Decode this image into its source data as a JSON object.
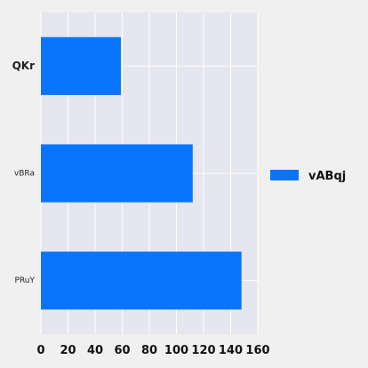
{
  "chart_data": {
    "type": "bar",
    "orientation": "horizontal",
    "title": "",
    "xlabel": "",
    "ylabel": "",
    "categories": [
      "QKr",
      "vBRa",
      "PRuY"
    ],
    "series": [
      {
        "name": "vABqj",
        "values": [
          59,
          112,
          148
        ],
        "color": "#0a75fa"
      }
    ],
    "xlim": [
      0,
      160
    ],
    "x_ticks": [
      0,
      20,
      40,
      60,
      80,
      100,
      120,
      140,
      160
    ],
    "x_tick_labels": [
      "0",
      "20",
      "40",
      "60",
      "80",
      "100",
      "120",
      "140",
      "160"
    ],
    "grid": true,
    "legend_position": "right",
    "colors": {
      "plot_background": "#e6e6f0",
      "figure_background": "#f0f0f0",
      "grid": "#ffffff"
    }
  }
}
